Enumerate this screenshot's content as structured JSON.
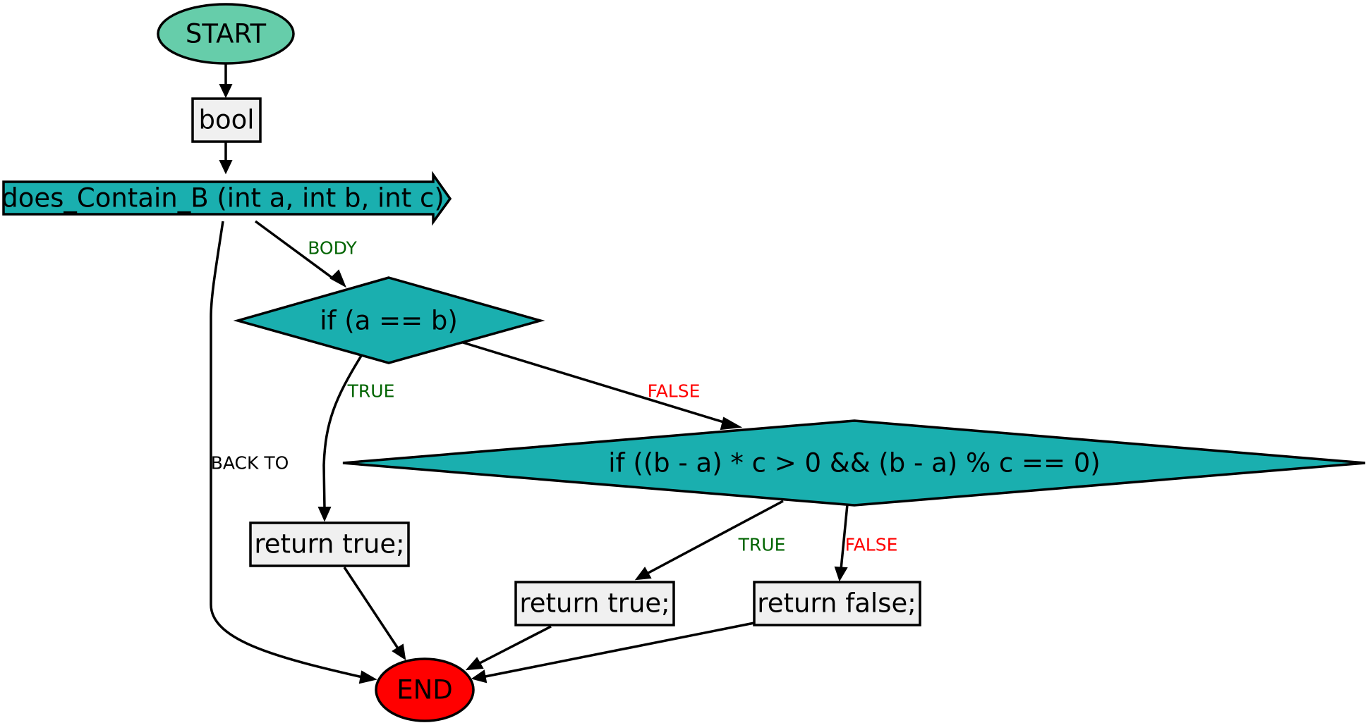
{
  "colors": {
    "start_fill": "#66cdaa",
    "process_fill": "#f0f0f0",
    "function_fill": "#1aafaf",
    "decision_fill": "#1aafaf",
    "end_fill": "#ff0000",
    "label_true": "#006400",
    "label_false": "#ff0000",
    "label_neutral": "#000000"
  },
  "nodes": {
    "start": "START",
    "type_decl": "bool",
    "function": "does_Contain_B (int a, int b, int c)",
    "cond1": "if (a == b)",
    "cond2": "if ((b - a) * c > 0 && (b - a) % c == 0)",
    "ret1": "return true;",
    "ret2": "return true;",
    "ret3": "return false;",
    "end": "END"
  },
  "edges": {
    "body": "BODY",
    "back_to": "BACK TO",
    "cond1_true": "TRUE",
    "cond1_false": "FALSE",
    "cond2_true": "TRUE",
    "cond2_false": "FALSE"
  }
}
